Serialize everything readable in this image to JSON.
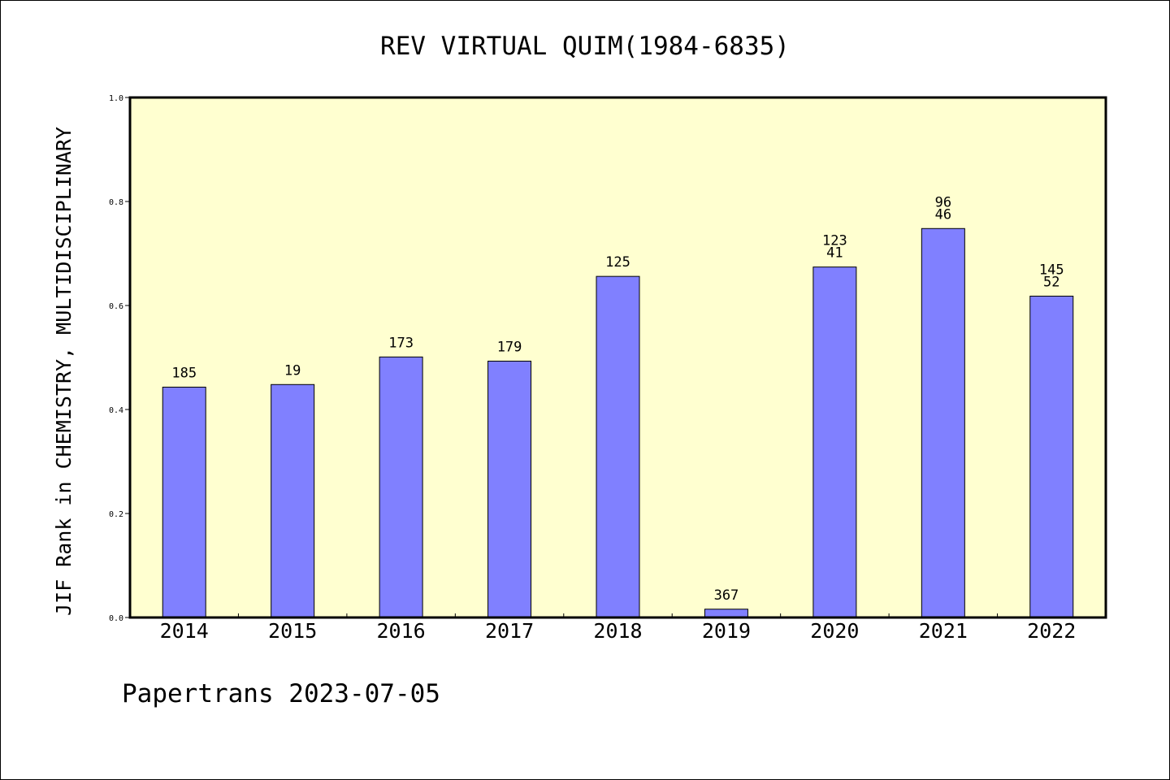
{
  "chart_data": {
    "type": "bar",
    "title": "REV VIRTUAL QUIM(1984-6835)",
    "ylabel": "JIF Rank in CHEMISTRY, MULTIDISCIPLINARY",
    "xlabel": "",
    "ylim": [
      0,
      1.0
    ],
    "yticks": [
      "0.0",
      "0.2",
      "0.4",
      "0.6",
      "0.8",
      "1.0"
    ],
    "categories": [
      "2014",
      "2015",
      "2016",
      "2017",
      "2018",
      "2019",
      "2020",
      "2021",
      "2022"
    ],
    "values": [
      0.443,
      0.448,
      0.501,
      0.493,
      0.656,
      0.016,
      0.674,
      0.748,
      0.618
    ],
    "labels": [
      [
        "185"
      ],
      [
        "19"
      ],
      [
        "173"
      ],
      [
        "179"
      ],
      [
        "125"
      ],
      [
        "367"
      ],
      [
        "123",
        "41"
      ],
      [
        "96",
        "46"
      ],
      [
        "145",
        "52"
      ]
    ],
    "grid": false,
    "colors": {
      "bar": "#8080ff",
      "plot_background": "#ffffd0",
      "axis": "#000000"
    }
  },
  "footer": {
    "credit": "Papertrans 2023-07-05"
  }
}
